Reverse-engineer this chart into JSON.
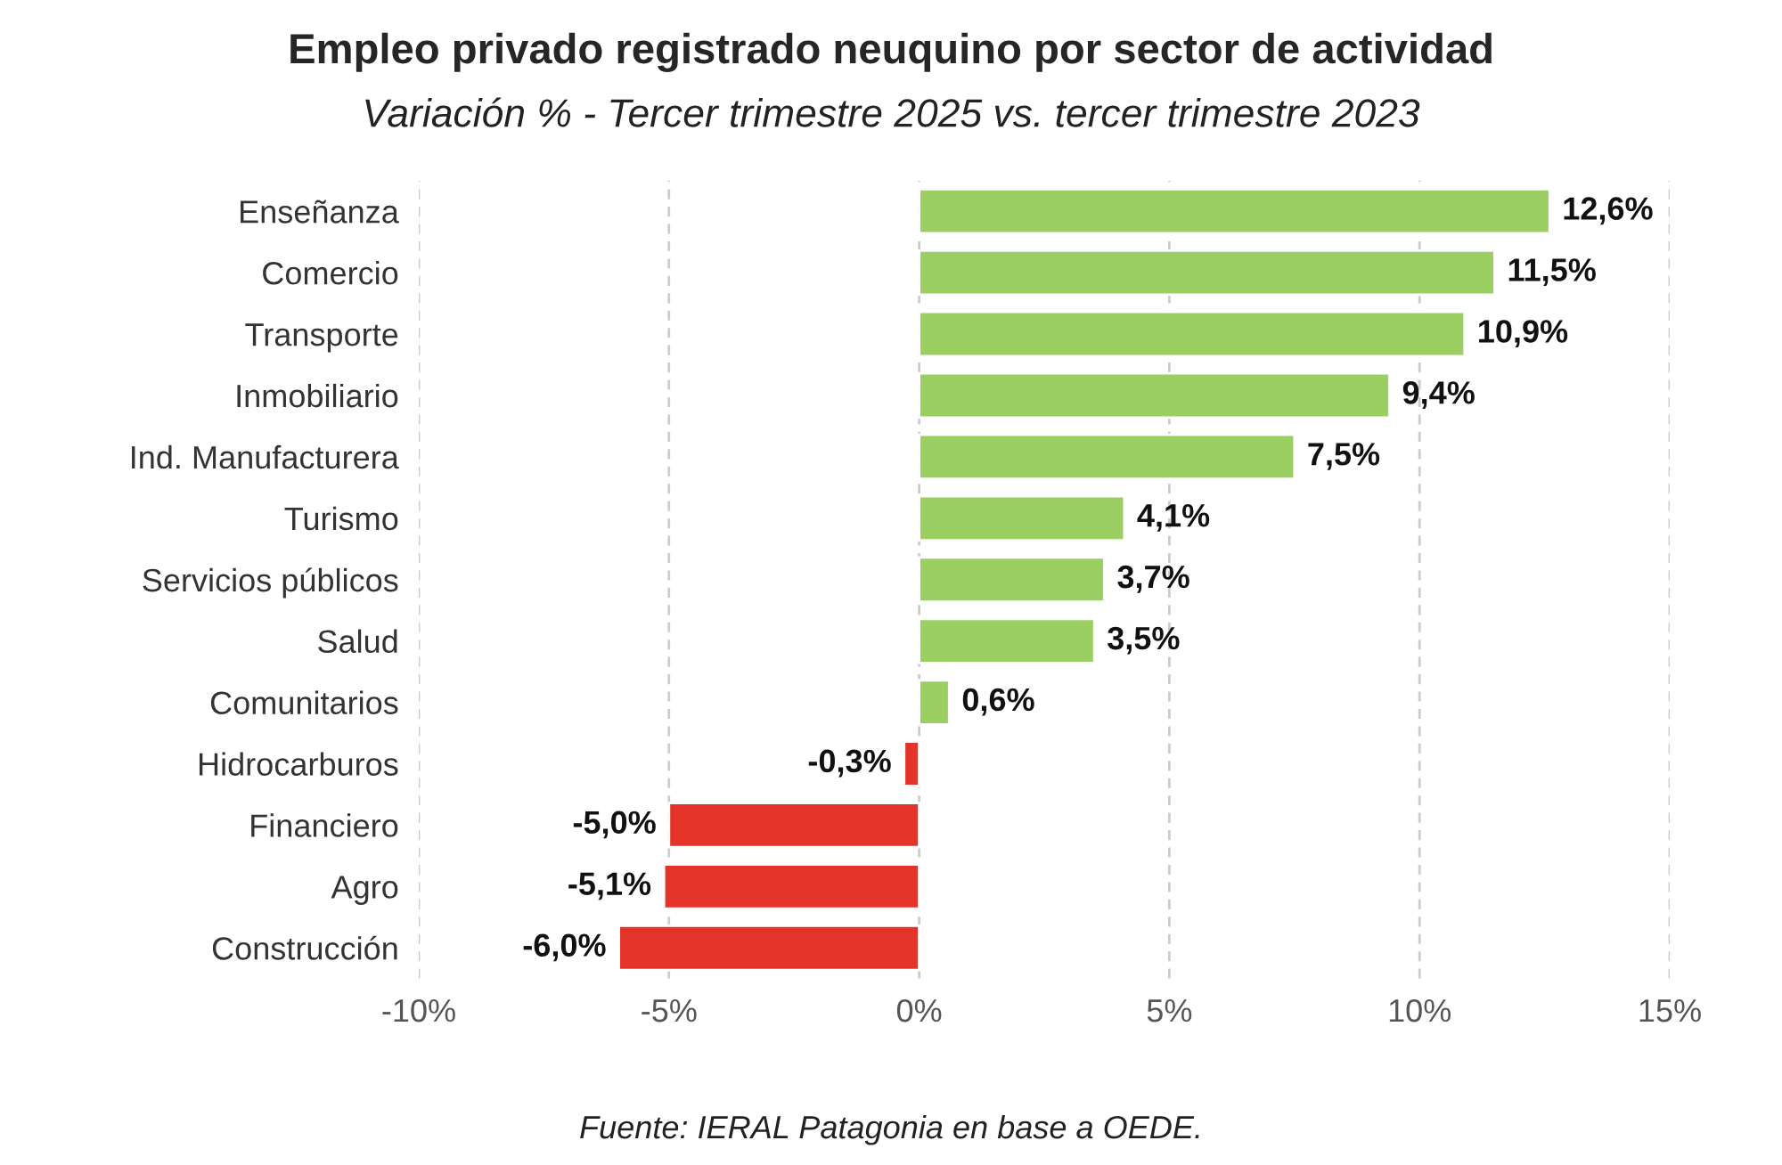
{
  "chart_data": {
    "type": "bar",
    "orientation": "horizontal",
    "title": "Empleo privado registrado neuquino por sector de actividad",
    "subtitle": "Variación % - Tercer trimestre 2025 vs. tercer trimestre 2023",
    "categories": [
      "Enseñanza",
      "Comercio",
      "Transporte",
      "Inmobiliario",
      "Ind. Manufacturera",
      "Turismo",
      "Servicios públicos",
      "Salud",
      "Comunitarios",
      "Hidrocarburos",
      "Financiero",
      "Agro",
      "Construcción"
    ],
    "values": [
      12.6,
      11.5,
      10.9,
      9.4,
      7.5,
      4.1,
      3.7,
      3.5,
      0.6,
      -0.3,
      -5.0,
      -5.1,
      -6.0
    ],
    "colors": [
      "#9ccf62",
      "#9ccf62",
      "#9ccf62",
      "#9ccf62",
      "#9ccf62",
      "#9ccf62",
      "#9ccf62",
      "#9ccf62",
      "#9ccf62",
      "#e4342a",
      "#e4342a",
      "#e4342a",
      "#e4342a"
    ],
    "value_labels": [
      "12,6%",
      "11,5%",
      "10,9%",
      "9,4%",
      "7,5%",
      "4,1%",
      "3,7%",
      "3,5%",
      "0,6%",
      "-0,3%",
      "-5,0%",
      "-5,1%",
      "-6,0%"
    ],
    "xlim": [
      -10,
      15
    ],
    "xticks": [
      {
        "value": -10,
        "label": "-10%"
      },
      {
        "value": -5,
        "label": "-5%"
      },
      {
        "value": 0,
        "label": "0%"
      },
      {
        "value": 5,
        "label": "5%"
      },
      {
        "value": 10,
        "label": "10%"
      },
      {
        "value": 15,
        "label": "15%"
      }
    ],
    "grid": "x",
    "annotations": [
      "Fuente: IERAL Patagonia en base a OEDE."
    ]
  }
}
